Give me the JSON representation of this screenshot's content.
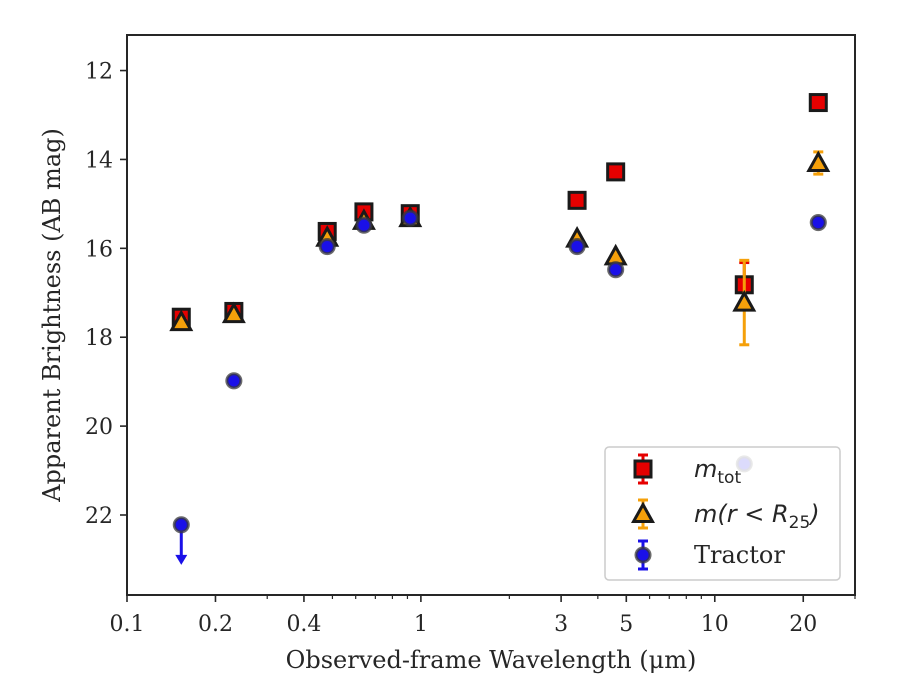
{
  "chart_data": {
    "type": "scatter",
    "title": "",
    "xlabel": "Observed-frame Wavelength (μm)",
    "ylabel": "Apparent Brightness (AB mag)",
    "xscale": "log",
    "xlim": [
      0.1,
      30
    ],
    "ylim": [
      23.8,
      11.2
    ],
    "y_inverted": true,
    "x_ticks": [
      {
        "value": 0.1,
        "label": "0.1"
      },
      {
        "value": 0.2,
        "label": "0.2"
      },
      {
        "value": 0.4,
        "label": "0.4"
      },
      {
        "value": 1,
        "label": "1"
      },
      {
        "value": 3,
        "label": "3"
      },
      {
        "value": 5,
        "label": "5"
      },
      {
        "value": 10,
        "label": "10"
      },
      {
        "value": 20,
        "label": "20"
      }
    ],
    "x_minor_ticks": [
      0.3,
      0.5,
      0.6,
      0.7,
      0.8,
      0.9,
      2,
      4,
      6,
      7,
      8,
      9,
      30
    ],
    "y_ticks": [
      {
        "value": 12,
        "label": "12"
      },
      {
        "value": 14,
        "label": "14"
      },
      {
        "value": 16,
        "label": "16"
      },
      {
        "value": 18,
        "label": "18"
      },
      {
        "value": 20,
        "label": "20"
      },
      {
        "value": 22,
        "label": "22"
      }
    ],
    "grid": false,
    "legend_position": "lower-right",
    "series": [
      {
        "name": "m_tot",
        "marker": "square",
        "face_color": "#e60000",
        "edge_color": "#1a1a1a",
        "error_color": "#e60000",
        "points": [
          {
            "x": 0.153,
            "y": 17.55,
            "err": 0.06
          },
          {
            "x": 0.231,
            "y": 17.42,
            "err": 0.05
          },
          {
            "x": 0.48,
            "y": 15.62,
            "err": 0.05
          },
          {
            "x": 0.64,
            "y": 15.18,
            "err": 0.05
          },
          {
            "x": 0.92,
            "y": 15.22,
            "err": 0.05
          },
          {
            "x": 3.4,
            "y": 14.92,
            "err": 0.05
          },
          {
            "x": 4.6,
            "y": 14.28,
            "err": 0.05
          },
          {
            "x": 12.6,
            "y": 16.82,
            "err": 0.5
          },
          {
            "x": 22.5,
            "y": 12.72,
            "err": 0.05
          }
        ]
      },
      {
        "name": "m(r < R_25)",
        "marker": "triangle",
        "face_color": "#f5a00a",
        "edge_color": "#1a1a1a",
        "error_color": "#f5a00a",
        "points": [
          {
            "x": 0.153,
            "y": 17.66,
            "err": 0.06
          },
          {
            "x": 0.231,
            "y": 17.48,
            "err": 0.05
          },
          {
            "x": 0.48,
            "y": 15.76,
            "err": 0.05
          },
          {
            "x": 0.64,
            "y": 15.38,
            "err": 0.05
          },
          {
            "x": 0.92,
            "y": 15.32,
            "err": 0.05
          },
          {
            "x": 3.4,
            "y": 15.78,
            "err": 0.05
          },
          {
            "x": 4.6,
            "y": 16.18,
            "err": 0.05
          },
          {
            "x": 12.6,
            "y": 17.22,
            "err": 0.95
          },
          {
            "x": 22.5,
            "y": 14.08,
            "err": 0.25
          }
        ]
      },
      {
        "name": "Tractor",
        "marker": "circle",
        "face_color": "#1a10e8",
        "edge_color": "#3a3a3a",
        "error_color": "#1a10e8",
        "points": [
          {
            "x": 0.153,
            "y": 22.22,
            "err": 0,
            "upper_limit": true,
            "arrow_to": 23.1
          },
          {
            "x": 0.231,
            "y": 18.98,
            "err": 0.04
          },
          {
            "x": 0.48,
            "y": 15.96,
            "err": 0.04
          },
          {
            "x": 0.64,
            "y": 15.48,
            "err": 0.04
          },
          {
            "x": 0.92,
            "y": 15.32,
            "err": 0.04
          },
          {
            "x": 3.4,
            "y": 15.96,
            "err": 0.04
          },
          {
            "x": 4.6,
            "y": 16.48,
            "err": 0.04
          },
          {
            "x": 12.6,
            "y": 20.85,
            "err": 0.04
          },
          {
            "x": 22.5,
            "y": 15.42,
            "err": 0.04
          }
        ]
      }
    ]
  },
  "legend": {
    "items": [
      {
        "kind": "math",
        "base": "m",
        "sub": "tot",
        "tail": ""
      },
      {
        "kind": "math",
        "base": "m(r < R",
        "sub": "25",
        "tail": ")"
      },
      {
        "kind": "text",
        "base": "Tractor",
        "sub": "",
        "tail": ""
      }
    ]
  }
}
